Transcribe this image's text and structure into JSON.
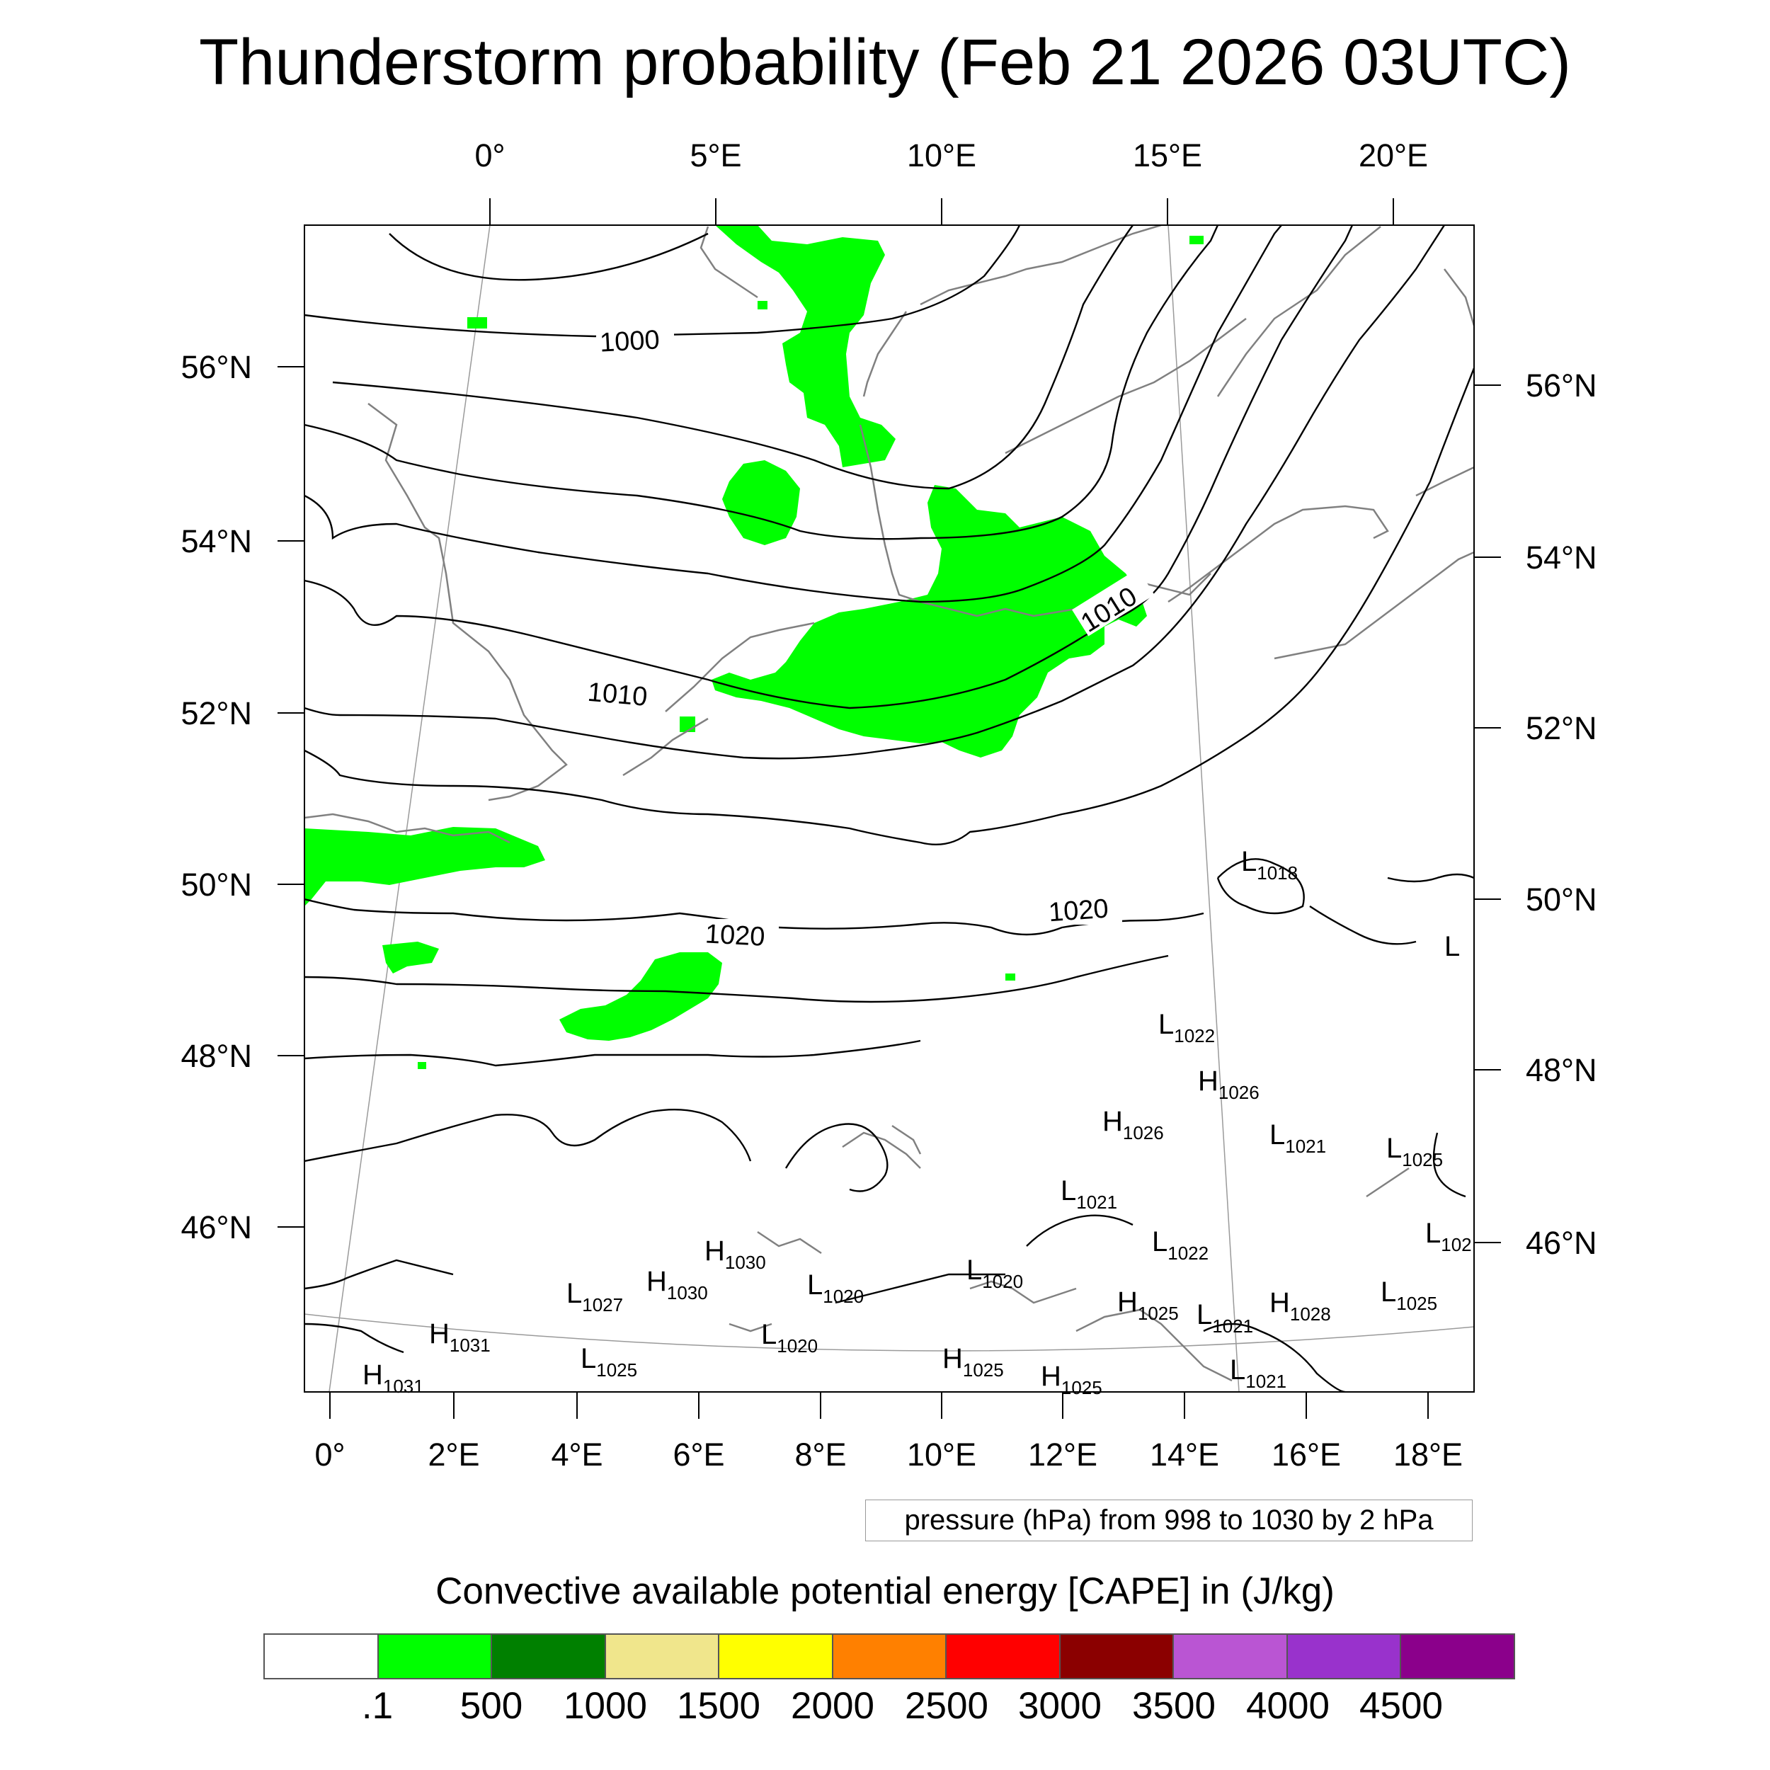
{
  "title": "Thunderstorm probability (Feb 21 2026 03UTC)",
  "top_lon_labels": [
    "0°",
    "5°E",
    "10°E",
    "15°E",
    "20°E"
  ],
  "bottom_lon_labels": [
    "0°",
    "2°E",
    "4°E",
    "6°E",
    "8°E",
    "10°E",
    "12°E",
    "14°E",
    "16°E",
    "18°E"
  ],
  "left_lat_labels": [
    "56°N",
    "54°N",
    "52°N",
    "50°N",
    "48°N",
    "46°N"
  ],
  "right_lat_labels": [
    "56°N",
    "54°N",
    "52°N",
    "50°N",
    "48°N",
    "46°N"
  ],
  "isobar_labels": [
    "1000",
    "1010",
    "1010",
    "1020",
    "1020"
  ],
  "pressure_centers": [
    {
      "type": "L",
      "value": "1018"
    },
    {
      "type": "L",
      "value": ""
    },
    {
      "type": "L",
      "value": "1022"
    },
    {
      "type": "H",
      "value": "1026"
    },
    {
      "type": "H",
      "value": "1026"
    },
    {
      "type": "L",
      "value": "1021"
    },
    {
      "type": "L",
      "value": "1025"
    },
    {
      "type": "L",
      "value": "1021"
    },
    {
      "type": "L",
      "value": "102"
    },
    {
      "type": "H",
      "value": "1030"
    },
    {
      "type": "L",
      "value": "1022"
    },
    {
      "type": "H",
      "value": "1030"
    },
    {
      "type": "L",
      "value": "1027"
    },
    {
      "type": "L",
      "value": "1020"
    },
    {
      "type": "L",
      "value": "1020"
    },
    {
      "type": "H",
      "value": "1025"
    },
    {
      "type": "L",
      "value": "1021"
    },
    {
      "type": "H",
      "value": "1028"
    },
    {
      "type": "L",
      "value": "1025"
    },
    {
      "type": "H",
      "value": "1031"
    },
    {
      "type": "L",
      "value": "1020"
    },
    {
      "type": "L",
      "value": "1025"
    },
    {
      "type": "H",
      "value": "1025"
    },
    {
      "type": "H",
      "value": "1025"
    },
    {
      "type": "L",
      "value": "1021"
    },
    {
      "type": "H",
      "value": "1031"
    }
  ],
  "pressure_note": "pressure (hPa) from 998 to 1030 by 2 hPa",
  "colorbar": {
    "title": "Convective available potential energy [CAPE] in (J/kg)",
    "colors": [
      "#ffffff",
      "#00ff00",
      "#008000",
      "#f0e68c",
      "#ffff00",
      "#ff8000",
      "#ff0000",
      "#8b0000",
      "#ba55d3",
      "#9932cc",
      "#8b008b"
    ],
    "labels": [
      ".1",
      "500",
      "1000",
      "1500",
      "2000",
      "2500",
      "3000",
      "3500",
      "4000",
      "4500"
    ]
  },
  "colors": {
    "cape_green": "#00ff00",
    "coastline": "#808080",
    "isobar": "#000000"
  }
}
